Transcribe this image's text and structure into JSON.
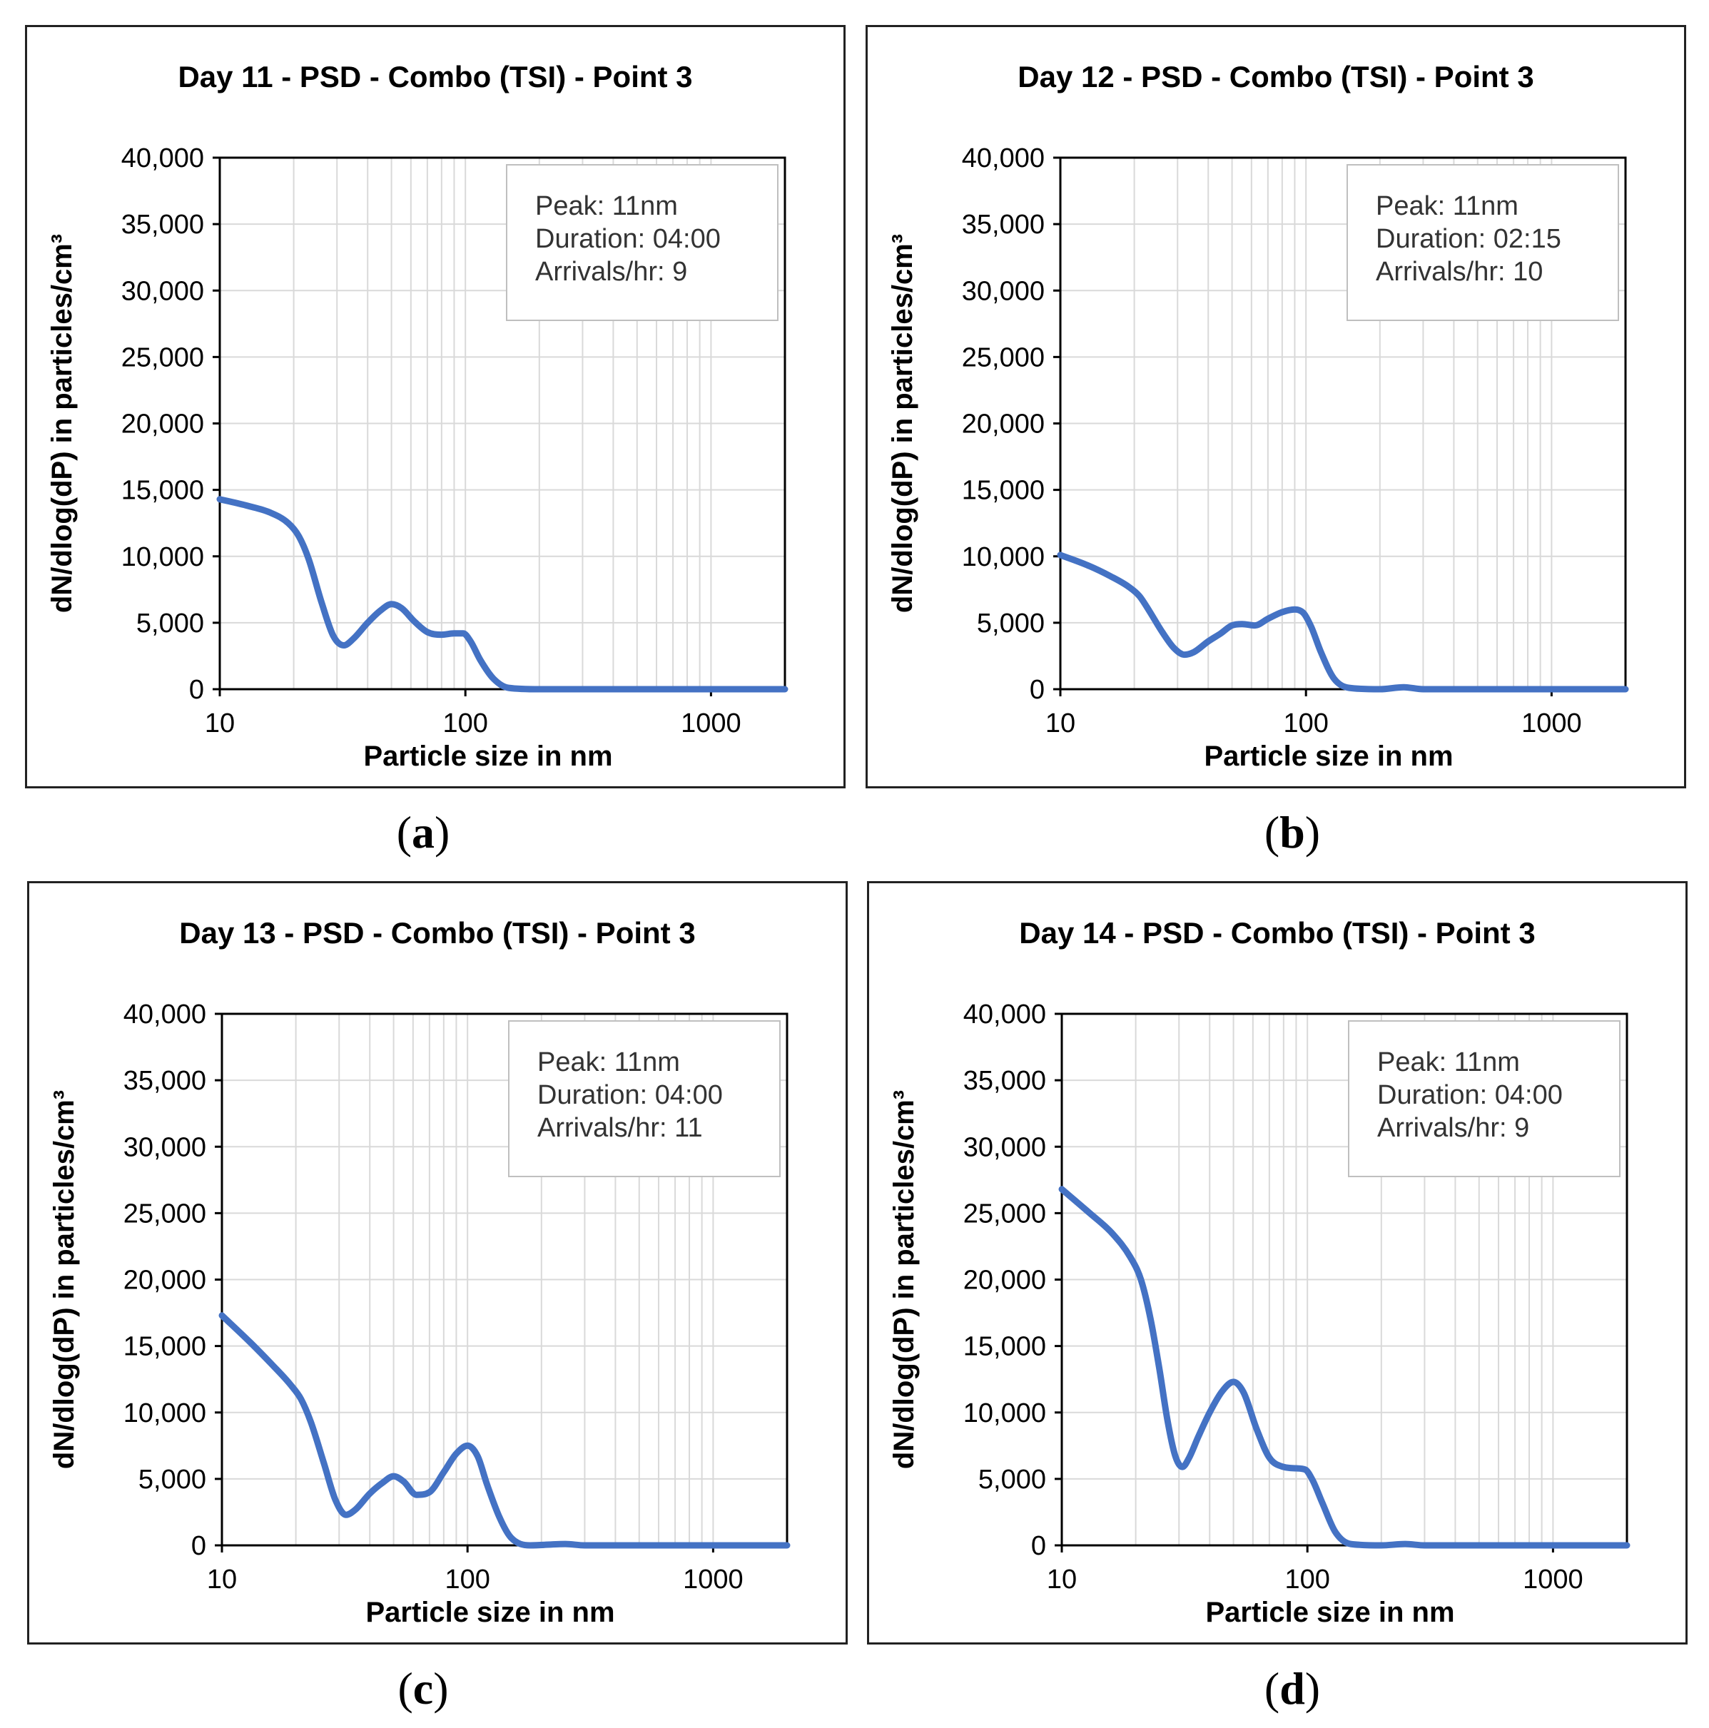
{
  "captions": [
    "a",
    "b",
    "c",
    "d"
  ],
  "style": {
    "line_color": "#4472C4",
    "grid_color": "#d9d9d9",
    "axis_color": "#000000",
    "annotation_border": "#bfbfbf"
  },
  "chart_data": [
    {
      "type": "line",
      "title": "Day 11 - PSD - Combo (TSI) - Point 3",
      "xlabel": "Particle size in nm",
      "ylabel": "dN/dlog(dP) in particles/cm³",
      "xscale": "log",
      "xlim": [
        10,
        2000
      ],
      "ylim": [
        0,
        40000
      ],
      "x_ticks": [
        "10",
        "100",
        "1000"
      ],
      "y_ticks": [
        "0",
        "5,000",
        "10,000",
        "15,000",
        "20,000",
        "25,000",
        "30,000",
        "35,000",
        "40,000"
      ],
      "annotation": [
        "Peak: 11nm",
        "Duration: 04:00",
        "Arrivals/hr: 9"
      ],
      "annotation_position": "top-right",
      "series": [
        {
          "name": "PSD",
          "x": [
            10,
            13,
            16,
            19,
            21,
            23,
            26,
            29,
            32,
            35,
            40,
            45,
            50,
            55,
            62,
            70,
            80,
            90,
            98,
            105,
            115,
            130,
            150,
            200,
            300,
            500,
            1000,
            2000
          ],
          "y": [
            14300,
            13800,
            13300,
            12500,
            11500,
            9800,
            6500,
            4000,
            3300,
            3800,
            5000,
            5900,
            6400,
            6100,
            5100,
            4300,
            4100,
            4200,
            4200,
            3600,
            2200,
            800,
            100,
            0,
            0,
            0,
            0,
            0
          ]
        }
      ]
    },
    {
      "type": "line",
      "title": "Day 12 - PSD - Combo (TSI) - Point 3",
      "xlabel": "Particle size in nm",
      "ylabel": "dN/dlog(dP) in particles/cm³",
      "xscale": "log",
      "xlim": [
        10,
        2000
      ],
      "ylim": [
        0,
        40000
      ],
      "x_ticks": [
        "10",
        "100",
        "1000"
      ],
      "y_ticks": [
        "0",
        "5,000",
        "10,000",
        "15,000",
        "20,000",
        "25,000",
        "30,000",
        "35,000",
        "40,000"
      ],
      "annotation": [
        "Peak: 11nm",
        "Duration: 02:15",
        "Arrivals/hr: 10"
      ],
      "annotation_position": "top-right",
      "series": [
        {
          "name": "PSD",
          "x": [
            10,
            13,
            16,
            19,
            21,
            23,
            26,
            29,
            32,
            35,
            40,
            45,
            50,
            55,
            62,
            70,
            80,
            90,
            98,
            105,
            115,
            130,
            150,
            200,
            250,
            300,
            500,
            1000,
            2000
          ],
          "y": [
            10100,
            9300,
            8500,
            7700,
            7000,
            5900,
            4300,
            3100,
            2600,
            2800,
            3600,
            4200,
            4800,
            4900,
            4800,
            5300,
            5800,
            6000,
            5700,
            4700,
            2800,
            800,
            100,
            0,
            150,
            0,
            0,
            0,
            0
          ]
        }
      ]
    },
    {
      "type": "line",
      "title": "Day 13 - PSD - Combo (TSI) - Point 3",
      "xlabel": "Particle size in nm",
      "ylabel": "dN/dlog(dP) in particles/cm³",
      "xscale": "log",
      "xlim": [
        10,
        2000
      ],
      "ylim": [
        0,
        40000
      ],
      "x_ticks": [
        "10",
        "100",
        "1000"
      ],
      "y_ticks": [
        "0",
        "5,000",
        "10,000",
        "15,000",
        "20,000",
        "25,000",
        "30,000",
        "35,000",
        "40,000"
      ],
      "annotation": [
        "Peak: 11nm",
        "Duration: 04:00",
        "Arrivals/hr: 11"
      ],
      "annotation_position": "top-right",
      "series": [
        {
          "name": "PSD",
          "x": [
            10,
            13,
            16,
            19,
            21,
            23,
            26,
            29,
            32,
            35,
            40,
            45,
            50,
            55,
            62,
            70,
            80,
            90,
            100,
            110,
            120,
            135,
            150,
            180,
            250,
            300,
            500,
            1000,
            2000
          ],
          "y": [
            17300,
            15300,
            13600,
            12100,
            11000,
            9300,
            6200,
            3400,
            2300,
            2700,
            3900,
            4700,
            5200,
            4800,
            3800,
            4000,
            5500,
            6900,
            7500,
            6700,
            4600,
            2100,
            600,
            0,
            100,
            0,
            0,
            0,
            0
          ]
        }
      ]
    },
    {
      "type": "line",
      "title": "Day 14 - PSD - Combo (TSI) - Point 3",
      "xlabel": "Particle size in nm",
      "ylabel": "dN/dlog(dP) in particles/cm³",
      "xscale": "log",
      "xlim": [
        10,
        2000
      ],
      "ylim": [
        0,
        40000
      ],
      "x_ticks": [
        "10",
        "100",
        "1000"
      ],
      "y_ticks": [
        "0",
        "5,000",
        "10,000",
        "15,000",
        "20,000",
        "25,000",
        "30,000",
        "35,000",
        "40,000"
      ],
      "annotation": [
        "Peak: 11nm",
        "Duration: 04:00",
        "Arrivals/hr: 9"
      ],
      "annotation_position": "top-right",
      "series": [
        {
          "name": "PSD",
          "x": [
            10,
            13,
            16,
            19,
            21,
            23,
            25,
            27,
            29,
            31,
            33,
            36,
            40,
            45,
            50,
            55,
            62,
            70,
            80,
            90,
            98,
            105,
            115,
            130,
            150,
            200,
            250,
            300,
            500,
            1000,
            2000
          ],
          "y": [
            26800,
            25000,
            23500,
            21700,
            20000,
            17000,
            13200,
            9300,
            6700,
            5900,
            6600,
            8200,
            10000,
            11600,
            12300,
            11500,
            8800,
            6600,
            5900,
            5800,
            5700,
            4900,
            3200,
            1000,
            100,
            0,
            100,
            0,
            0,
            0,
            0
          ]
        }
      ]
    }
  ]
}
